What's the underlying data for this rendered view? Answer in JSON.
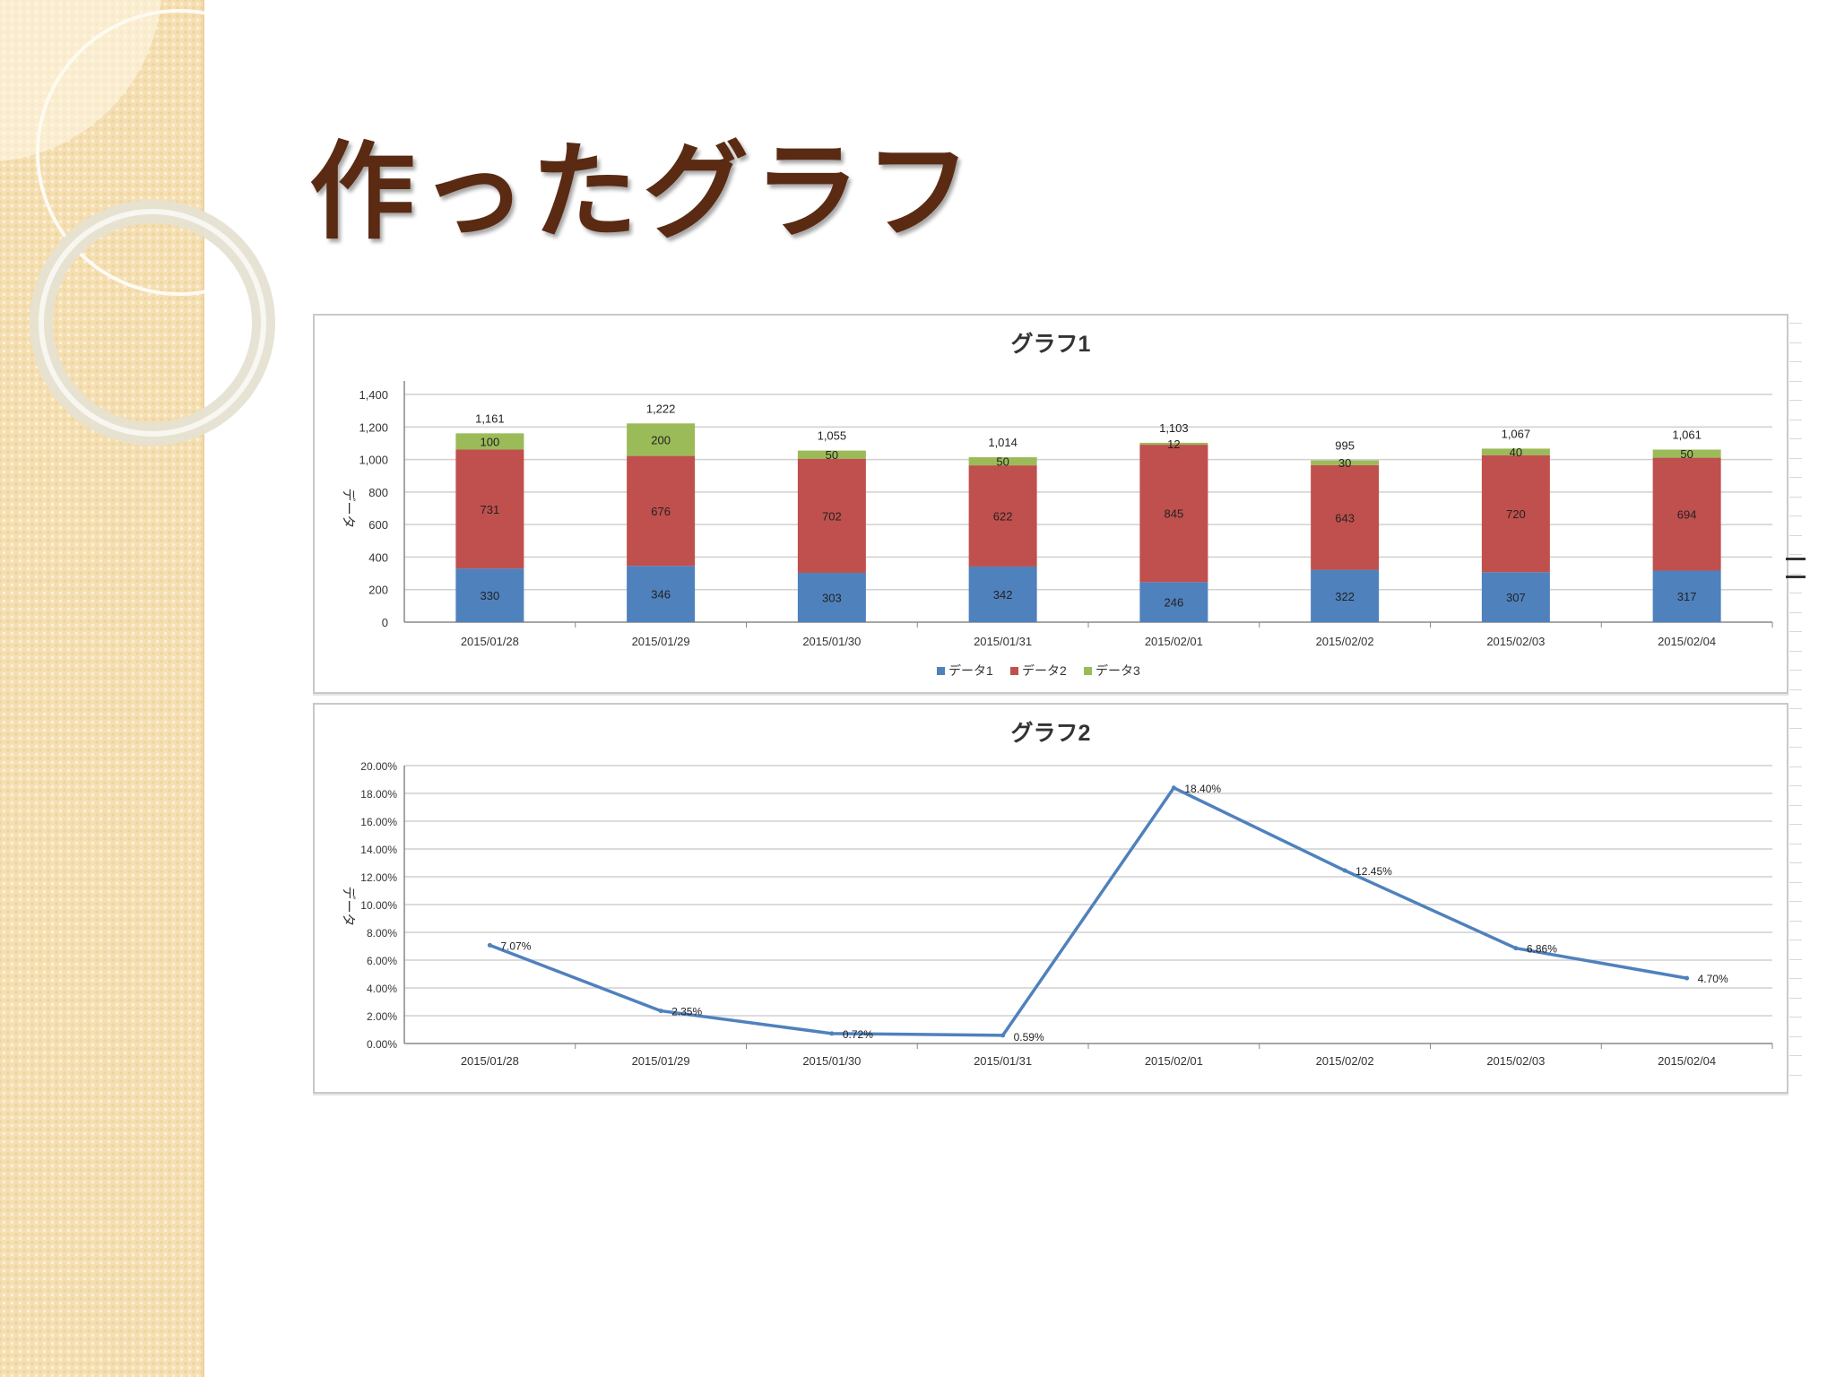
{
  "slide": {
    "title": "作ったグラフ",
    "sidebar_color": "#f5deb0",
    "title_color": "#5a2a12"
  },
  "chart_data": [
    {
      "type": "bar",
      "stacked": true,
      "title": "グラフ1",
      "ylabel": "データ",
      "xlabel": "",
      "ylim": [
        0,
        1400
      ],
      "yticks": [
        "0",
        "200",
        "400",
        "600",
        "800",
        "1,000",
        "1,200",
        "1,400"
      ],
      "ytick_values": [
        0,
        200,
        400,
        600,
        800,
        1000,
        1200,
        1400
      ],
      "categories": [
        "2015/01/28",
        "2015/01/29",
        "2015/01/30",
        "2015/01/31",
        "2015/02/01",
        "2015/02/02",
        "2015/02/03",
        "2015/02/04"
      ],
      "series": [
        {
          "name": "データ1",
          "color": "#4f81bd",
          "values": [
            330,
            346,
            303,
            342,
            246,
            322,
            307,
            317
          ],
          "labels": [
            "330",
            "346",
            "303",
            "342",
            "246",
            "322",
            "307",
            "317"
          ]
        },
        {
          "name": "データ2",
          "color": "#c0504d",
          "values": [
            731,
            676,
            702,
            622,
            845,
            643,
            720,
            694
          ],
          "labels": [
            "731",
            "676",
            "702",
            "622",
            "845",
            "643",
            "720",
            "694"
          ]
        },
        {
          "name": "データ3",
          "color": "#9bbb59",
          "values": [
            100,
            200,
            50,
            50,
            12,
            30,
            40,
            50
          ],
          "labels": [
            "100",
            "200",
            "50",
            "50",
            "12",
            "30",
            "40",
            "50"
          ]
        }
      ],
      "totals": [
        "1,161",
        "1,222",
        "1,055",
        "1,014",
        "1,103",
        "995",
        "1,067",
        "1,061"
      ],
      "total_values": [
        1161,
        1222,
        1055,
        1014,
        1103,
        995,
        1067,
        1061
      ],
      "grid": true,
      "legend": "bottom"
    },
    {
      "type": "line",
      "title": "グラフ2",
      "ylabel": "データ",
      "xlabel": "",
      "ylim": [
        0,
        20
      ],
      "yticks": [
        "0.00%",
        "2.00%",
        "4.00%",
        "6.00%",
        "8.00%",
        "10.00%",
        "12.00%",
        "14.00%",
        "16.00%",
        "18.00%",
        "20.00%"
      ],
      "ytick_values": [
        0,
        2,
        4,
        6,
        8,
        10,
        12,
        14,
        16,
        18,
        20
      ],
      "categories": [
        "2015/01/28",
        "2015/01/29",
        "2015/01/30",
        "2015/01/31",
        "2015/02/01",
        "2015/02/02",
        "2015/02/03",
        "2015/02/04"
      ],
      "series": [
        {
          "color": "#4f81bd",
          "values": [
            7.07,
            2.35,
            0.72,
            0.59,
            18.4,
            12.45,
            6.86,
            4.7
          ],
          "labels": [
            "7.07%",
            "2.35%",
            "0.72%",
            "0.59%",
            "18.40%",
            "12.45%",
            "6.86%",
            "4.70%"
          ]
        }
      ],
      "grid": true,
      "legend": "none"
    }
  ]
}
